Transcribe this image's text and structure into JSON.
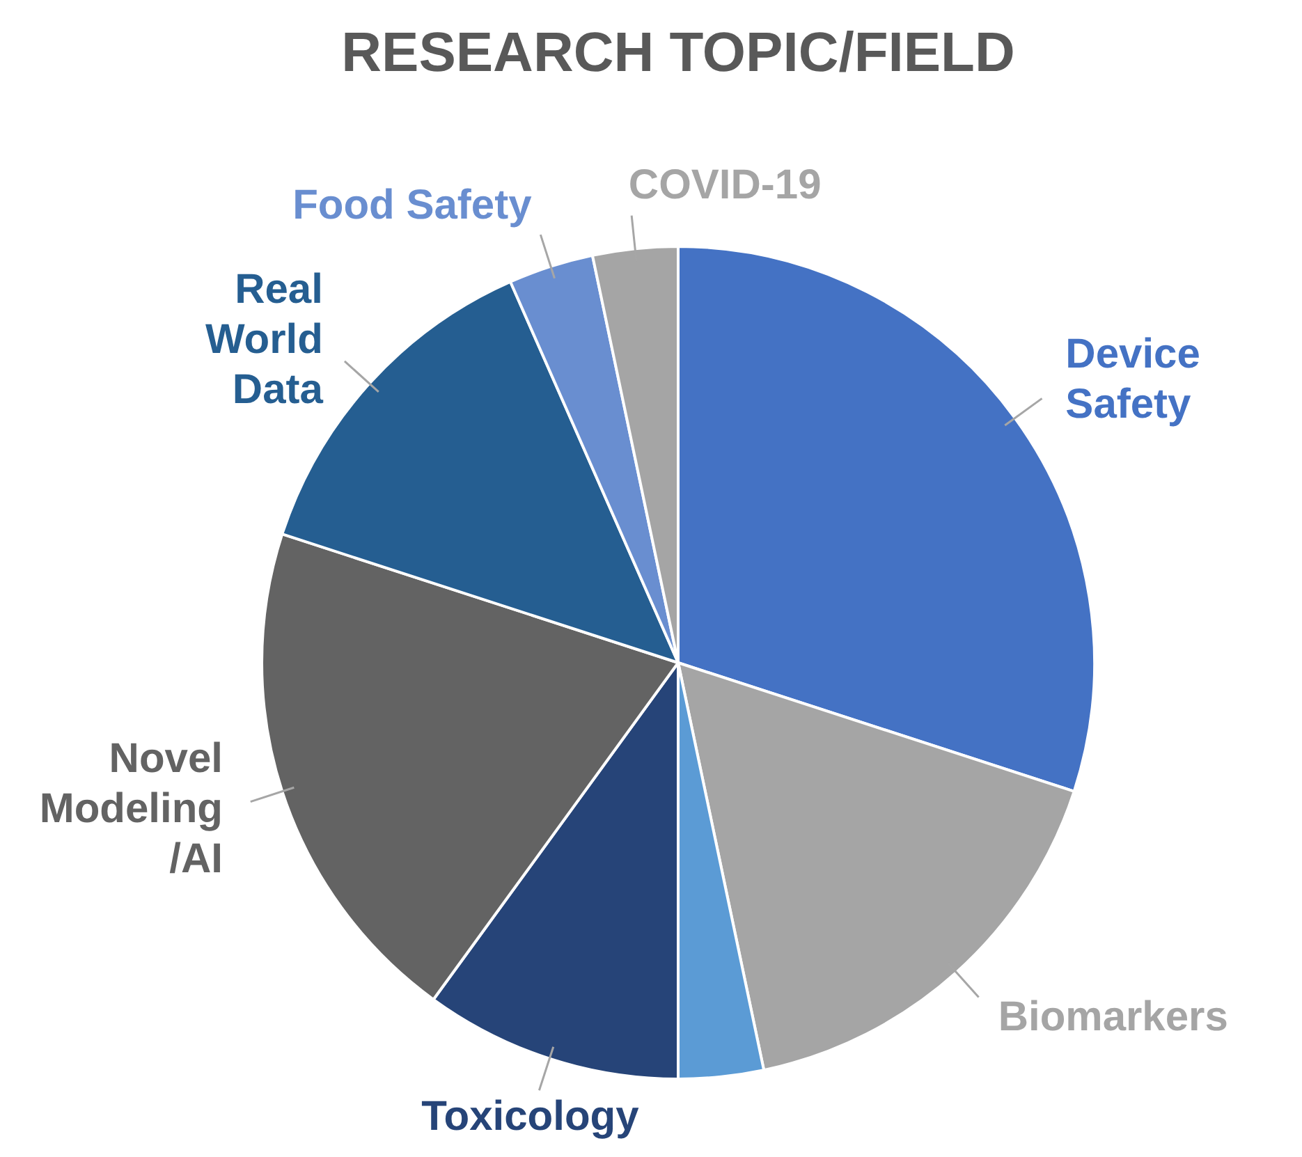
{
  "chart_data": {
    "type": "pie",
    "title": "RESEARCH TOPIC/FIELD",
    "categories": [
      "Device Safety",
      "Biomarkers",
      null,
      "Toxicology",
      "Novel Modeling /AI",
      "Real World Data",
      "Food Safety",
      "COVID-19"
    ],
    "values": [
      30,
      16.7,
      3.3,
      10,
      20,
      13.4,
      3.3,
      3.3
    ],
    "colors": [
      "#4472c4",
      "#a5a5a5",
      "#5b9bd5",
      "#264478",
      "#636363",
      "#255e91",
      "#698ed0",
      "#a5a5a5"
    ],
    "legend": false
  }
}
